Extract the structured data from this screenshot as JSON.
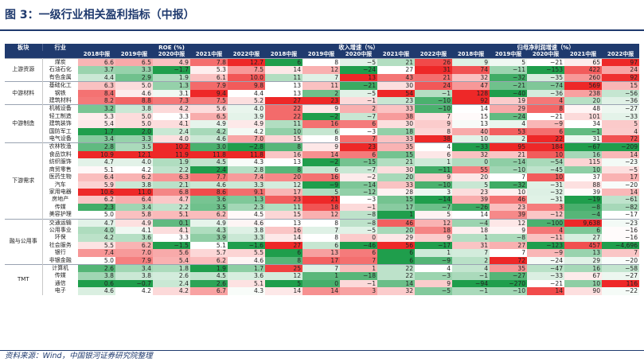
{
  "title": "图 3：一级行业相关盈利指标（中报）",
  "source": "资料来源：Wind，中国银河证券研究院整理",
  "header": {
    "sector": "板块",
    "industry": "行业",
    "groups": [
      "ROE (%)",
      "收入增速（%）",
      "归母净利润增速（%）"
    ],
    "years": [
      "2018中报",
      "2019中报",
      "2020中报",
      "2021中报",
      "2022中报"
    ]
  },
  "colors": {
    "header_bg": "#1f3a6e",
    "strong_red": "#ee2828",
    "strong_green": "#1f9e4c"
  },
  "sections": [
    {
      "name": "上游资源",
      "rows": [
        {
          "industry": "煤炭",
          "roe": [
            "6.6",
            "6.5",
            "4.9",
            "7.8",
            "12.7"
          ],
          "rev": [
            "6",
            "8",
            "−5",
            "21",
            "26"
          ],
          "np": [
            "9",
            "5",
            "−21",
            "65",
            "97"
          ]
        },
        {
          "industry": "石油石化",
          "roe": [
            "3.7",
            "3.3",
            "−1.7",
            "5.3",
            "7.5"
          ],
          "rev": [
            "14",
            "12",
            "−24",
            "27",
            "31"
          ],
          "np": [
            "74",
            "−11",
            "−153",
            "422",
            "24"
          ]
        },
        {
          "industry": "有色金属",
          "roe": [
            "4.4",
            "2.9",
            "1.9",
            "6.1",
            "10.0"
          ],
          "rev": [
            "11",
            "7",
            "13",
            "43",
            "21"
          ],
          "np": [
            "32",
            "−32",
            "−35",
            "260",
            "92"
          ]
        }
      ]
    },
    {
      "name": "中游材料",
      "rows": [
        {
          "industry": "基础化工",
          "roe": [
            "6.3",
            "5.0",
            "1.3",
            "7.9",
            "9.8"
          ],
          "rev": [
            "13",
            "11",
            "−21",
            "30",
            "24"
          ],
          "np": [
            "47",
            "−21",
            "−74",
            "569",
            "15"
          ]
        },
        {
          "industry": "钢铁",
          "roe": [
            "8.4",
            "4.6",
            "3.1",
            "9.4",
            "4.4"
          ],
          "rev": [
            "13",
            "2",
            "−5",
            "54",
            "−1"
          ],
          "np": [
            "128",
            "−40",
            "−36",
            "238",
            "−56"
          ]
        },
        {
          "industry": "建筑材料",
          "roe": [
            "8.2",
            "8.8",
            "7.3",
            "7.5",
            "5.2"
          ],
          "rev": [
            "27",
            "23",
            "−1",
            "23",
            "−10"
          ],
          "np": [
            "92",
            "19",
            "4",
            "20",
            "−36"
          ]
        }
      ]
    },
    {
      "name": "中游制造",
      "rows": [
        {
          "industry": "机械设备",
          "roe": [
            "3.2",
            "3.8",
            "4.2",
            "5.6",
            "4.0"
          ],
          "rev": [
            "22",
            "9",
            "2",
            "33",
            "−10"
          ],
          "np": [
            "14",
            "29",
            "8",
            "48",
            "−27"
          ]
        },
        {
          "industry": "轻工制造",
          "roe": [
            "5.3",
            "5.0",
            "3.3",
            "6.5",
            "3.9"
          ],
          "rev": [
            "22",
            "−2",
            "−7",
            "38",
            "7"
          ],
          "np": [
            "15",
            "−24",
            "−21",
            "101",
            "−33"
          ]
        },
        {
          "industry": "建筑装饰",
          "roe": [
            "5.4",
            "5.0",
            "4.1",
            "4.9",
            "4.9"
          ],
          "rev": [
            "11",
            "16",
            "6",
            "30",
            "9"
          ],
          "np": [
            "13",
            "4",
            "−9",
            "34",
            "5"
          ]
        },
        {
          "industry": "国防军工",
          "roe": [
            "1.7",
            "2.0",
            "2.4",
            "4.2",
            "4.2"
          ],
          "rev": [
            "10",
            "6",
            "−3",
            "18",
            "8"
          ],
          "np": [
            "40",
            "53",
            "6",
            "−1",
            "4"
          ]
        },
        {
          "industry": "电气设备",
          "roe": [
            "3.4",
            "3.3",
            "4.0",
            "4.6",
            "7.0"
          ],
          "rev": [
            "15",
            "8",
            "7",
            "33",
            "38"
          ],
          "np": [
            "10",
            "2",
            "22",
            "31",
            "72"
          ]
        }
      ]
    },
    {
      "name": "下游需求",
      "rows": [
        {
          "industry": "农林牧渔",
          "roe": [
            "2.8",
            "3.5",
            "10.2",
            "3.0",
            "−2.8"
          ],
          "rev": [
            "8",
            "9",
            "23",
            "35",
            "4"
          ],
          "np": [
            "−33",
            "95",
            "184",
            "−67",
            "−209"
          ]
        },
        {
          "industry": "食品饮料",
          "roe": [
            "10.9",
            "12.1",
            "11.9",
            "11.8",
            "11.8"
          ],
          "rev": [
            "16",
            "14",
            "6",
            "15",
            "6"
          ],
          "np": [
            "32",
            "21",
            "10",
            "16",
            "14"
          ]
        },
        {
          "industry": "纺织服饰",
          "roe": [
            "4.7",
            "4.0",
            "1.9",
            "4.5",
            "4.3"
          ],
          "rev": [
            "13",
            "−2",
            "−15",
            "21",
            "1"
          ],
          "np": [
            "0",
            "−14",
            "−54",
            "115",
            "−23"
          ]
        },
        {
          "industry": "商贸零售",
          "roe": [
            "5.1",
            "4.2",
            "2.2",
            "2.4",
            "2.8"
          ],
          "rev": [
            "8",
            "6",
            "−7",
            "30",
            "−11"
          ],
          "np": [
            "55",
            "−10",
            "−45",
            "10",
            "−5"
          ]
        },
        {
          "industry": "医药生物",
          "roe": [
            "6.4",
            "6.2",
            "6.3",
            "7.7",
            "7.4"
          ],
          "rev": [
            "20",
            "16",
            "−2",
            "20",
            "9"
          ],
          "np": [
            "20",
            "7",
            "10",
            "37",
            "17"
          ]
        },
        {
          "industry": "汽车",
          "roe": [
            "5.9",
            "3.8",
            "2.1",
            "4.6",
            "3.3"
          ],
          "rev": [
            "12",
            "−9",
            "−14",
            "33",
            "−10"
          ],
          "np": [
            "5",
            "−32",
            "−31",
            "88",
            "−20"
          ]
        },
        {
          "industry": "家用电器",
          "roe": [
            "10.6",
            "11.0",
            "6.8",
            "8.6",
            "9.1"
          ],
          "rev": [
            "17",
            "5",
            "−12",
            "28",
            "3"
          ],
          "np": [
            "23",
            "10",
            "−32",
            "39",
            "14"
          ]
        },
        {
          "industry": "房地产",
          "roe": [
            "6.2",
            "6.4",
            "4.7",
            "3.6",
            "1.3"
          ],
          "rev": [
            "23",
            "21",
            "−3",
            "15",
            "−14"
          ],
          "np": [
            "39",
            "46",
            "−31",
            "−19",
            "−61"
          ]
        },
        {
          "industry": "传媒",
          "roe": [
            "2.3",
            "3.4",
            "2.2",
            "3.5",
            "2.3"
          ],
          "rev": [
            "11",
            "18",
            "−1",
            "17",
            "−7"
          ],
          "np": [
            "−26",
            "23",
            "3",
            "−8",
            "−82"
          ]
        },
        {
          "industry": "美容护理",
          "roe": [
            "5.0",
            "5.8",
            "5.1",
            "6.2",
            "4.5"
          ],
          "rev": [
            "15",
            "12",
            "−8",
            "1",
            "5"
          ],
          "np": [
            "14",
            "39",
            "−12",
            "−4",
            "−17"
          ]
        }
      ]
    },
    {
      "name": "融与公用事",
      "rows": [
        {
          "industry": "交通运输",
          "roe": [
            "4.7",
            "4.9",
            "0.1",
            "4.9",
            "4.6"
          ],
          "rev": [
            "13",
            "8",
            "−8",
            "46",
            "12"
          ],
          "np": [
            "−4",
            "12",
            "−100",
            "9,638",
            "−23"
          ]
        },
        {
          "industry": "公用事业",
          "roe": [
            "4.0",
            "4.1",
            "4.1",
            "4.3",
            "3.8"
          ],
          "rev": [
            "16",
            "7",
            "−5",
            "20",
            "18"
          ],
          "np": [
            "18",
            "9",
            "4",
            "6",
            "−16"
          ]
        },
        {
          "industry": "环保",
          "roe": [
            "4.2",
            "3.6",
            "3.3",
            "3.9",
            "3.3"
          ],
          "rev": [
            "14",
            "8",
            "0",
            "29",
            "9"
          ],
          "np": [
            "1",
            "−8",
            "−11",
            "27",
            "−16"
          ]
        },
        {
          "industry": "社会服务",
          "roe": [
            "5.5",
            "6.2",
            "−1.5",
            "5.1",
            "−1.6"
          ],
          "rev": [
            "27",
            "6",
            "−46",
            "56",
            "−17"
          ],
          "np": [
            "31",
            "27",
            "−123",
            "457",
            "−4,696"
          ]
        },
        {
          "industry": "银行",
          "roe": [
            "7.4",
            "7.0",
            "5.6",
            "5.7",
            "5.5"
          ],
          "rev": [
            "6",
            "13",
            "6",
            "6",
            "1"
          ],
          "np": [
            "7",
            "7",
            "−9",
            "13",
            "7"
          ]
        },
        {
          "industry": "非银金融",
          "roe": [
            "5.0",
            "7.9",
            "5.4",
            "6.2",
            "4.6"
          ],
          "rev": [
            "8",
            "17",
            "7",
            "6",
            "−9"
          ],
          "np": [
            "2",
            "72",
            "−24",
            "29",
            "−20"
          ]
        }
      ]
    },
    {
      "name": "TMT",
      "rows": [
        {
          "industry": "计算机",
          "roe": [
            "2.6",
            "3.4",
            "1.8",
            "1.9",
            "1.7"
          ],
          "rev": [
            "25",
            "7",
            "1",
            "22",
            "4"
          ],
          "np": [
            "4",
            "35",
            "−47",
            "16",
            "−58"
          ]
        },
        {
          "industry": "传媒",
          "roe": [
            "3.8",
            "3.8",
            "2.6",
            "4.5",
            "3.6"
          ],
          "rev": [
            "12",
            "1",
            "−18",
            "22",
            "−3"
          ],
          "np": [
            "−1",
            "−27",
            "−33",
            "67",
            "−27"
          ]
        },
        {
          "industry": "通信",
          "roe": [
            "0.6",
            "−0.7",
            "2.4",
            "2.6",
            "5.1"
          ],
          "rev": [
            "5",
            "0",
            "−1",
            "14",
            "9"
          ],
          "np": [
            "−94",
            "−270",
            "−21",
            "10",
            "116"
          ]
        },
        {
          "industry": "电子",
          "roe": [
            "4.6",
            "4.2",
            "4.2",
            "6.7",
            "4.3"
          ],
          "rev": [
            "14",
            "14",
            "3",
            "32",
            "−5"
          ],
          "np": [
            "−1",
            "−10",
            "14",
            "90",
            "−22"
          ]
        }
      ]
    }
  ]
}
